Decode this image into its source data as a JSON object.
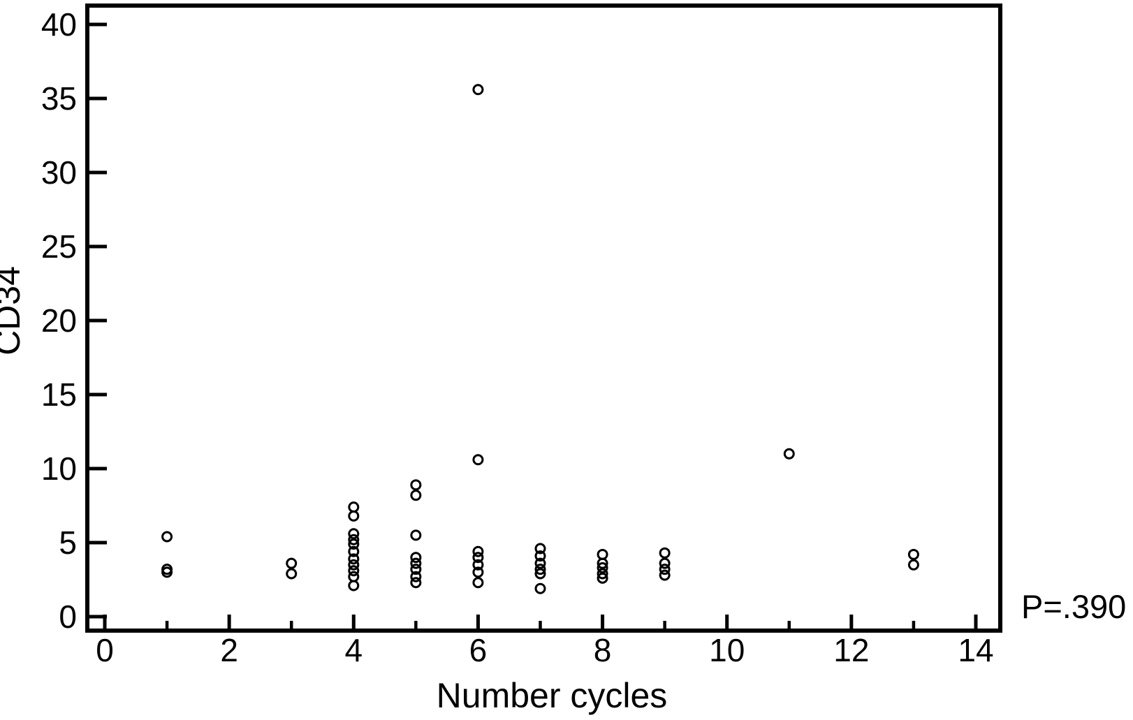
{
  "figure": {
    "xlabel": "Number cycles",
    "ylabel": "CD34",
    "annotation": "P=.390"
  },
  "chart_data": {
    "type": "scatter",
    "title": "",
    "xlabel": "Number cycles",
    "ylabel": "CD34",
    "annotation": "P=.390",
    "xlim": [
      0,
      14
    ],
    "ylim": [
      0,
      40
    ],
    "grid": false,
    "legend": false,
    "marker": "open-circle",
    "color": "#000000",
    "background": "#ffffff",
    "x_major_ticks": [
      0,
      2,
      4,
      6,
      8,
      10,
      12,
      14
    ],
    "x_minor_ticks": [
      1,
      3,
      5,
      7,
      9,
      11,
      13
    ],
    "y_major_ticks": [
      0,
      5,
      10,
      15,
      20,
      25,
      30,
      35,
      40
    ],
    "points": [
      [
        1,
        5.4
      ],
      [
        1,
        3.2
      ],
      [
        1,
        3.0
      ],
      [
        3,
        3.6
      ],
      [
        3,
        2.9
      ],
      [
        4,
        7.4
      ],
      [
        4,
        6.8
      ],
      [
        4,
        5.6
      ],
      [
        4,
        5.2
      ],
      [
        4,
        4.9
      ],
      [
        4,
        4.4
      ],
      [
        4,
        3.9
      ],
      [
        4,
        3.5
      ],
      [
        4,
        3.1
      ],
      [
        4,
        2.7
      ],
      [
        4,
        2.1
      ],
      [
        5,
        8.9
      ],
      [
        5,
        8.2
      ],
      [
        5,
        5.5
      ],
      [
        5,
        4.0
      ],
      [
        5,
        3.6
      ],
      [
        5,
        3.2
      ],
      [
        5,
        2.7
      ],
      [
        5,
        2.3
      ],
      [
        6,
        35.6
      ],
      [
        6,
        10.6
      ],
      [
        6,
        4.4
      ],
      [
        6,
        4.0
      ],
      [
        6,
        3.5
      ],
      [
        6,
        3.0
      ],
      [
        6,
        2.3
      ],
      [
        7,
        4.6
      ],
      [
        7,
        4.1
      ],
      [
        7,
        3.6
      ],
      [
        7,
        3.2
      ],
      [
        7,
        2.9
      ],
      [
        7,
        1.9
      ],
      [
        8,
        4.2
      ],
      [
        8,
        3.6
      ],
      [
        8,
        3.3
      ],
      [
        8,
        2.9
      ],
      [
        8,
        2.6
      ],
      [
        9,
        4.3
      ],
      [
        9,
        3.6
      ],
      [
        9,
        3.2
      ],
      [
        9,
        2.8
      ],
      [
        11,
        11.0
      ],
      [
        13,
        4.2
      ],
      [
        13,
        3.5
      ]
    ]
  }
}
